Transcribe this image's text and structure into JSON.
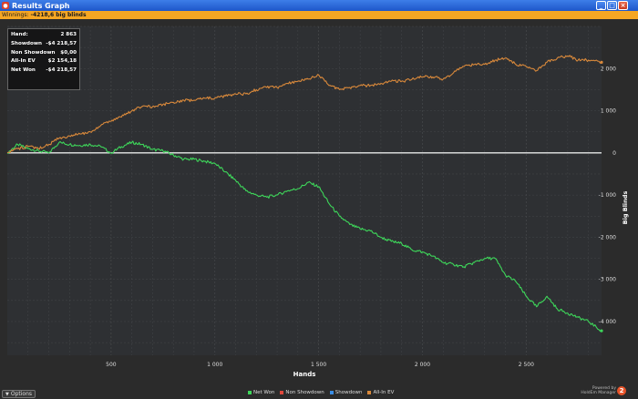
{
  "window": {
    "title": "Results Graph",
    "icon": "app-icon",
    "controls": [
      "_",
      "□",
      "×"
    ]
  },
  "winnings_bar": {
    "label": "Winnings:",
    "value": "-4218,6 big blinds"
  },
  "stats": [
    {
      "label": "Hand:",
      "value": "2 863"
    },
    {
      "label": "Showdown",
      "value": "-$4 218,57"
    },
    {
      "label": "Non Showdown",
      "value": "$0,00"
    },
    {
      "label": "All-In EV",
      "value": "$2 154,18"
    },
    {
      "label": "Net Won",
      "value": "-$4 218,57"
    }
  ],
  "bottom": {
    "options_label": "Options",
    "powered_line1": "Powered by",
    "powered_line2": "HoldEm Manager",
    "logo_text": "2"
  },
  "colors": {
    "net_won": "#3ed65a",
    "non_showdown": "#e0483c",
    "showdown": "#3a8ee6",
    "all_in_ev": "#d9893b",
    "zero_line": "#e8e8e8",
    "background": "#2e3033",
    "grid": "#444649"
  },
  "chart_data": {
    "type": "line",
    "xlabel": "Hands",
    "ylabel": "Big Blinds",
    "xlim": [
      0,
      2863
    ],
    "ylim": [
      -4800,
      3000
    ],
    "x_ticks": [
      500,
      1000,
      1500,
      2000,
      2500
    ],
    "x_tick_labels": [
      "500",
      "1 000",
      "1 500",
      "2 000",
      "2 500"
    ],
    "y_ticks": [
      2000,
      1000,
      0,
      -1000,
      -2000,
      -3000,
      -4000
    ],
    "y_tick_labels": [
      "2 000",
      "1 000",
      "0",
      "-1 000",
      "-2 000",
      "-3 000",
      "-4 000"
    ],
    "legend": [
      "Net Won",
      "Non Showdown",
      "Showdown",
      "All-In EV"
    ],
    "series": [
      {
        "name": "Net Won",
        "x": [
          0,
          50,
          100,
          150,
          200,
          250,
          300,
          350,
          400,
          450,
          500,
          550,
          600,
          650,
          700,
          750,
          800,
          850,
          900,
          950,
          1000,
          1050,
          1100,
          1150,
          1200,
          1250,
          1300,
          1350,
          1400,
          1450,
          1500,
          1550,
          1600,
          1650,
          1700,
          1750,
          1800,
          1850,
          1900,
          1950,
          2000,
          2050,
          2100,
          2150,
          2200,
          2250,
          2300,
          2350,
          2400,
          2450,
          2500,
          2550,
          2600,
          2650,
          2700,
          2750,
          2800,
          2863
        ],
        "y": [
          0,
          200,
          100,
          50,
          0,
          250,
          200,
          180,
          200,
          150,
          0,
          150,
          250,
          200,
          80,
          50,
          -50,
          -150,
          -150,
          -200,
          -250,
          -450,
          -650,
          -900,
          -1000,
          -1050,
          -1000,
          -900,
          -850,
          -700,
          -800,
          -1200,
          -1500,
          -1700,
          -1800,
          -1850,
          -2000,
          -2100,
          -2150,
          -2300,
          -2350,
          -2450,
          -2600,
          -2650,
          -2700,
          -2600,
          -2500,
          -2500,
          -2900,
          -3050,
          -3400,
          -3650,
          -3400,
          -3700,
          -3800,
          -3900,
          -4000,
          -4220
        ]
      },
      {
        "name": "All-In EV",
        "x": [
          0,
          50,
          100,
          150,
          200,
          250,
          300,
          350,
          400,
          450,
          500,
          550,
          600,
          650,
          700,
          750,
          800,
          850,
          900,
          950,
          1000,
          1050,
          1100,
          1150,
          1200,
          1250,
          1300,
          1350,
          1400,
          1450,
          1500,
          1550,
          1600,
          1650,
          1700,
          1750,
          1800,
          1850,
          1900,
          1950,
          2000,
          2050,
          2100,
          2150,
          2200,
          2250,
          2300,
          2350,
          2400,
          2450,
          2500,
          2550,
          2600,
          2650,
          2700,
          2750,
          2800,
          2863
        ],
        "y": [
          0,
          100,
          150,
          100,
          200,
          350,
          400,
          450,
          500,
          650,
          750,
          850,
          1000,
          1100,
          1100,
          1150,
          1200,
          1250,
          1250,
          1300,
          1300,
          1350,
          1400,
          1400,
          1500,
          1550,
          1550,
          1650,
          1700,
          1750,
          1850,
          1600,
          1500,
          1550,
          1600,
          1600,
          1650,
          1700,
          1700,
          1750,
          1800,
          1800,
          1750,
          1900,
          2050,
          2100,
          2100,
          2200,
          2250,
          2100,
          2050,
          1950,
          2150,
          2250,
          2300,
          2200,
          2200,
          2150
        ]
      }
    ]
  }
}
